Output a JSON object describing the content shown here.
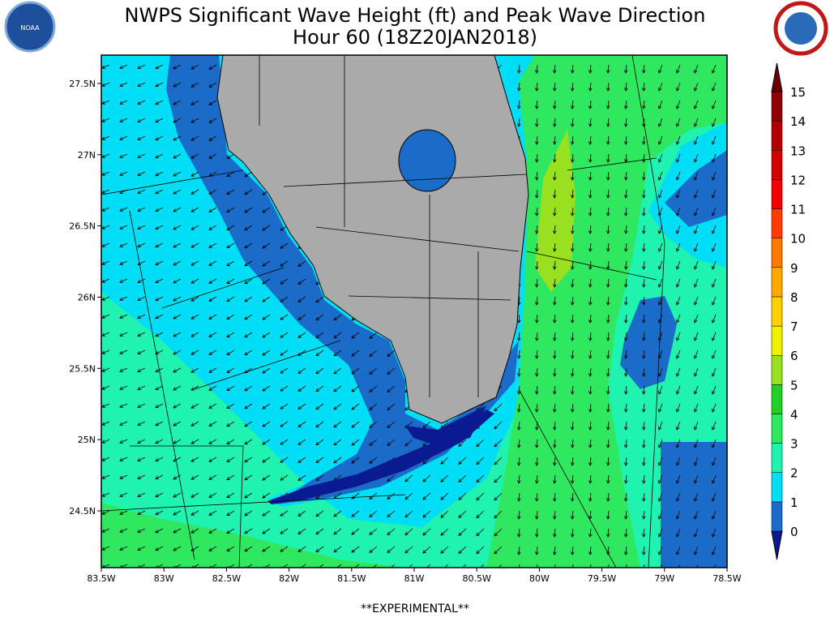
{
  "header": {
    "title_line1": "NWPS Significant Wave Height (ft) and Peak Wave Direction",
    "title_line2": "Hour 60 (18Z20JAN2018)",
    "left_logo": "NOAA",
    "right_logo": "NATIONAL WEATHER SERVICE"
  },
  "map": {
    "lon_ticks": [
      {
        "value": -83.5,
        "label": "83.5W"
      },
      {
        "value": -83,
        "label": "83W"
      },
      {
        "value": -82.5,
        "label": "82.5W"
      },
      {
        "value": -82,
        "label": "82W"
      },
      {
        "value": -81.5,
        "label": "81.5W"
      },
      {
        "value": -81,
        "label": "81W"
      },
      {
        "value": -80.5,
        "label": "80.5W"
      },
      {
        "value": -80,
        "label": "80W"
      },
      {
        "value": -79.5,
        "label": "79.5W"
      },
      {
        "value": -79,
        "label": "79W"
      },
      {
        "value": -78.5,
        "label": "78.5W"
      }
    ],
    "lat_ticks": [
      {
        "value": 27.5,
        "label": "27.5N"
      },
      {
        "value": 27,
        "label": "27N"
      },
      {
        "value": 26.5,
        "label": "26.5N"
      },
      {
        "value": 26,
        "label": "26N"
      },
      {
        "value": 25.5,
        "label": "25.5N"
      },
      {
        "value": 25,
        "label": "25N"
      },
      {
        "value": 24.5,
        "label": "24.5N"
      }
    ]
  },
  "legend": {
    "levels": [
      0,
      1,
      2,
      3,
      4,
      5,
      6,
      7,
      8,
      9,
      10,
      11,
      12,
      13,
      14,
      15
    ],
    "colors": [
      "#0a1a90",
      "#1a6cc8",
      "#00def5",
      "#20f2b0",
      "#30e860",
      "#20d028",
      "#98e020",
      "#f0f000",
      "#ffd000",
      "#ffa800",
      "#ff7800",
      "#ff3c00",
      "#f00000",
      "#d00000",
      "#b00000",
      "#900000",
      "#6a0000"
    ]
  },
  "footer": "**EXPERIMENTAL**"
}
